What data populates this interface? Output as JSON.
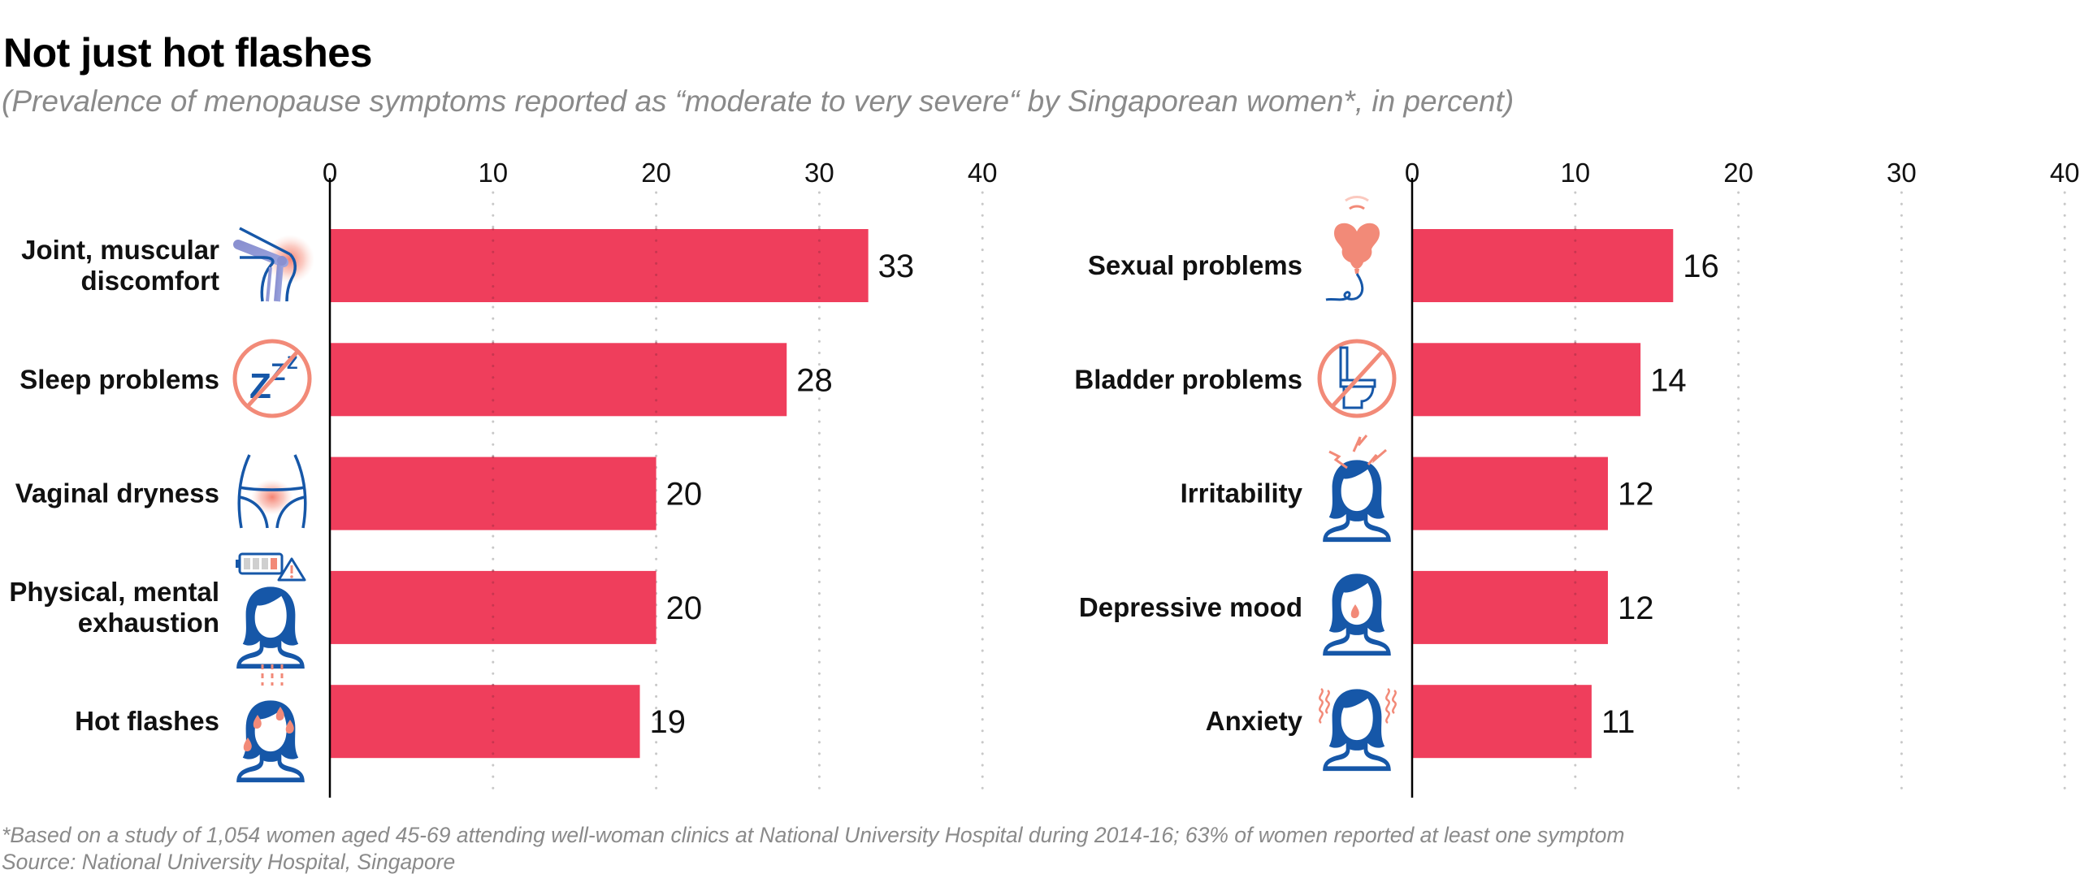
{
  "header": {
    "title": "Not just hot flashes",
    "subtitle": "(Prevalence of menopause symptoms reported as “moderate to very severe“ by Singaporean women*, in percent)"
  },
  "footer": {
    "footnote": "*Based on a study of 1,054 women aged 45-69 attending well-woman clinics at National University Hospital during 2014-16; 63% of women reported at least one symptom",
    "source": "Source: National University Hospital, Singapore"
  },
  "colors": {
    "bar": "#ef3e5c",
    "icon_blue": "#1657a8",
    "icon_salmon": "#f28a78",
    "gridline": "#c8c8c8",
    "axis": "#000000"
  },
  "chart_data": [
    {
      "type": "bar",
      "orientation": "horizontal",
      "title": "",
      "xlabel": "",
      "ylabel": "",
      "xlim": [
        0,
        40
      ],
      "xticks": [
        0,
        10,
        20,
        30,
        40
      ],
      "grid": "vertical dotted",
      "categories": [
        "Joint, muscular discomfort",
        "Sleep problems",
        "Vaginal dryness",
        "Physical, mental exhaustion",
        "Hot flashes"
      ],
      "label_lines": [
        [
          "Joint, muscular",
          "discomfort"
        ],
        [
          "Sleep problems"
        ],
        [
          "Vaginal dryness"
        ],
        [
          "Physical, mental",
          "exhaustion"
        ],
        [
          "Hot flashes"
        ]
      ],
      "icons": [
        "knee-joint-icon",
        "no-sleep-icon",
        "pelvis-icon",
        "exhausted-woman-icon",
        "sweating-woman-icon"
      ],
      "values": [
        33,
        28,
        20,
        20,
        19
      ]
    },
    {
      "type": "bar",
      "orientation": "horizontal",
      "title": "",
      "xlabel": "",
      "ylabel": "",
      "xlim": [
        0,
        40
      ],
      "xticks": [
        0,
        10,
        20,
        30,
        40
      ],
      "grid": "vertical dotted",
      "categories": [
        "Sexual problems",
        "Bladder problems",
        "Irritability",
        "Depressive mood",
        "Anxiety"
      ],
      "label_lines": [
        [
          "Sexual problems"
        ],
        [
          "Bladder problems"
        ],
        [
          "Irritability"
        ],
        [
          "Depressive mood"
        ],
        [
          "Anxiety"
        ]
      ],
      "icons": [
        "deflated-heart-balloon-icon",
        "no-toilet-icon",
        "irritated-woman-icon",
        "crying-woman-icon",
        "anxious-woman-icon"
      ],
      "values": [
        16,
        14,
        12,
        12,
        11
      ]
    }
  ]
}
